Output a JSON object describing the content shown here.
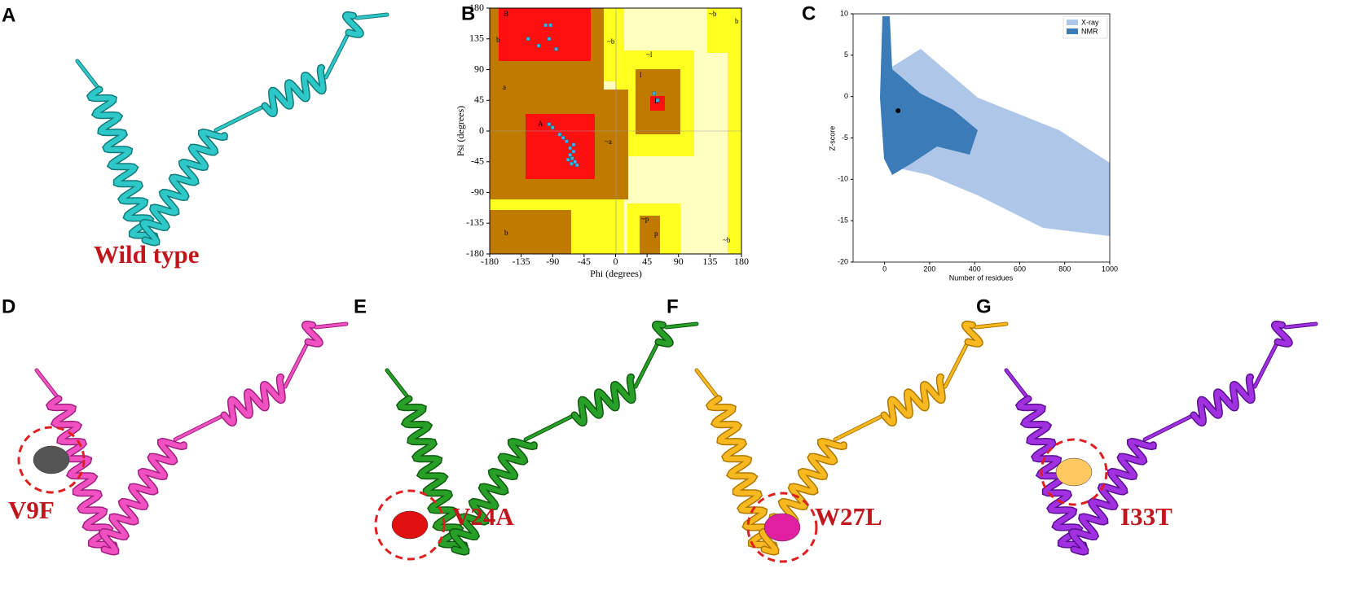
{
  "panels": [
    {
      "label": "A",
      "caption": "Wild type"
    },
    {
      "label": "B"
    },
    {
      "label": "C"
    },
    {
      "label": "D",
      "caption": "V9F"
    },
    {
      "label": "E",
      "caption": "V24A"
    },
    {
      "label": "F",
      "caption": "W27L"
    },
    {
      "label": "G",
      "caption": "I33T"
    }
  ],
  "chart_data": [
    {
      "type": "scatter",
      "xlabel": "Phi (degrees)",
      "ylabel": "Psi (degrees)",
      "xlim": [
        -180,
        180
      ],
      "ylim": [
        -180,
        180
      ],
      "xticks": [
        -180,
        -135,
        -90,
        -45,
        0,
        45,
        90,
        135,
        180
      ],
      "yticks": [
        -180,
        -135,
        -90,
        -45,
        0,
        45,
        90,
        135,
        180
      ],
      "color": "#3cb4e6",
      "region_labels": [
        "B",
        "b",
        "~b",
        "A",
        "a",
        "~a",
        "~l",
        "l",
        "L",
        "~p",
        "p",
        "b",
        "~b",
        "b",
        "~b"
      ],
      "x": [
        -100,
        -93,
        -125,
        -95,
        -85,
        -110,
        -95,
        -90,
        -80,
        -70,
        -65,
        -60,
        -62,
        -58,
        -55,
        -65,
        -68,
        -60,
        -75,
        -63,
        55,
        60
      ],
      "values": [
        155,
        155,
        135,
        135,
        120,
        125,
        10,
        5,
        -5,
        -15,
        -25,
        -30,
        -40,
        -45,
        -50,
        -35,
        -42,
        -20,
        -10,
        -48,
        55,
        45
      ]
    },
    {
      "type": "scatter",
      "xlabel": "Number of residues",
      "ylabel": "Z-score",
      "xlim": [
        -140,
        1000
      ],
      "ylim": [
        -20,
        10
      ],
      "xticks": [
        0,
        200,
        400,
        600,
        800,
        1000
      ],
      "yticks": [
        -20,
        -15,
        -10,
        -5,
        0,
        5,
        10
      ],
      "legend": [
        {
          "name": "X-ray",
          "color": "#aec7e8"
        },
        {
          "name": "NMR",
          "color": "#3a7bb8"
        }
      ],
      "x": [
        60
      ],
      "values": [
        -1.7
      ],
      "color": "#000000"
    }
  ]
}
